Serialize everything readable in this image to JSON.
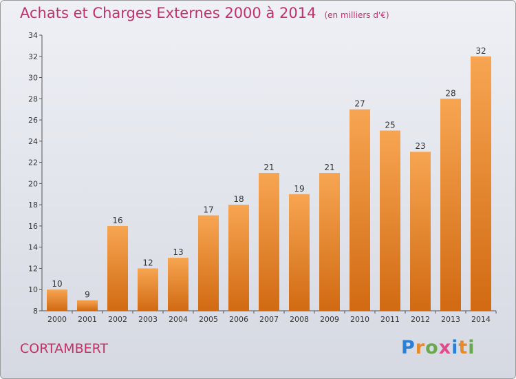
{
  "header": {
    "title": "Achats et Charges Externes 2000 à 2014",
    "unit": "(en milliers d'€)"
  },
  "footer": {
    "commune": "CORTAMBERT",
    "logo_letters": [
      {
        "ch": "P",
        "color": "#2a7fd6"
      },
      {
        "ch": "r",
        "color": "#e8892a"
      },
      {
        "ch": "o",
        "color": "#6aa84f"
      },
      {
        "ch": "x",
        "color": "#e34a8e"
      },
      {
        "ch": "i",
        "color": "#2a7fd6"
      },
      {
        "ch": "t",
        "color": "#e8892a"
      },
      {
        "ch": "i",
        "color": "#6aa84f"
      }
    ]
  },
  "colors": {
    "title": "#c4306a",
    "bar_light": "#f7a552",
    "bar_dark": "#d16a12"
  },
  "chart_data": {
    "type": "bar",
    "title": "Achats et Charges Externes 2000 à 2014",
    "subtitle": "(en milliers d'€)",
    "categories": [
      "2000",
      "2001",
      "2002",
      "2003",
      "2004",
      "2005",
      "2006",
      "2007",
      "2008",
      "2009",
      "2010",
      "2011",
      "2012",
      "2013",
      "2014"
    ],
    "values": [
      10,
      9,
      16,
      12,
      13,
      17,
      18,
      21,
      19,
      21,
      27,
      25,
      23,
      28,
      32
    ],
    "ylim": [
      8,
      34
    ],
    "yticks": [
      8,
      10,
      12,
      14,
      16,
      18,
      20,
      22,
      24,
      26,
      28,
      30,
      32,
      34
    ],
    "grid": false,
    "legend": "none"
  }
}
